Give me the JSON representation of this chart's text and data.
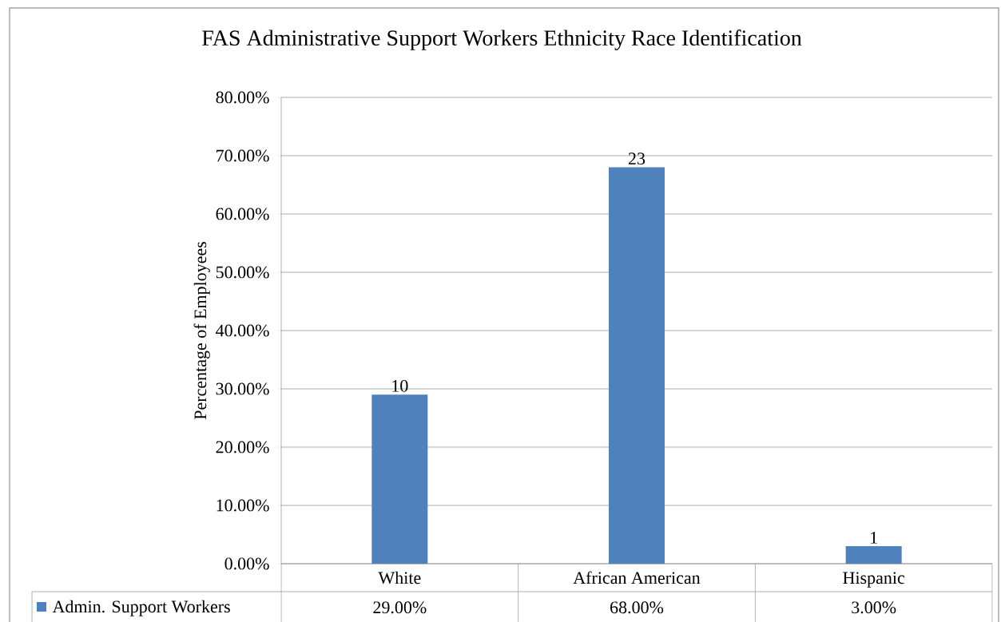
{
  "chart_data": {
    "type": "bar",
    "title": "FAS Administrative Support Workers Ethnicity Race Identification",
    "ylabel": "Percentage of Employees",
    "categories": [
      "White",
      "African American",
      "Hispanic"
    ],
    "series": [
      {
        "name": "Admin. Support Workers",
        "color": "#4f81bd",
        "values": [
          29,
          68,
          3
        ]
      }
    ],
    "ylim": [
      0,
      80
    ],
    "yticks": [
      {
        "value": 0,
        "label": "0.00%"
      },
      {
        "value": 10,
        "label": "10.00%"
      },
      {
        "value": 20,
        "label": "20.00%"
      },
      {
        "value": 30,
        "label": "30.00%"
      },
      {
        "value": 40,
        "label": "40.00%"
      },
      {
        "value": 50,
        "label": "50.00%"
      },
      {
        "value": 60,
        "label": "60.00%"
      },
      {
        "value": 70,
        "label": "70.00%"
      },
      {
        "value": 80,
        "label": "80.00%"
      }
    ],
    "grid": "y",
    "legend": "bottom",
    "annotations": [
      {
        "text": "10",
        "x": "White",
        "y": 29
      },
      {
        "text": "23",
        "x": "African American",
        "y": 68
      },
      {
        "text": "1",
        "x": "Hispanic",
        "y": 3
      },
      "29.00%",
      "68.00%",
      "3.00%"
    ]
  }
}
